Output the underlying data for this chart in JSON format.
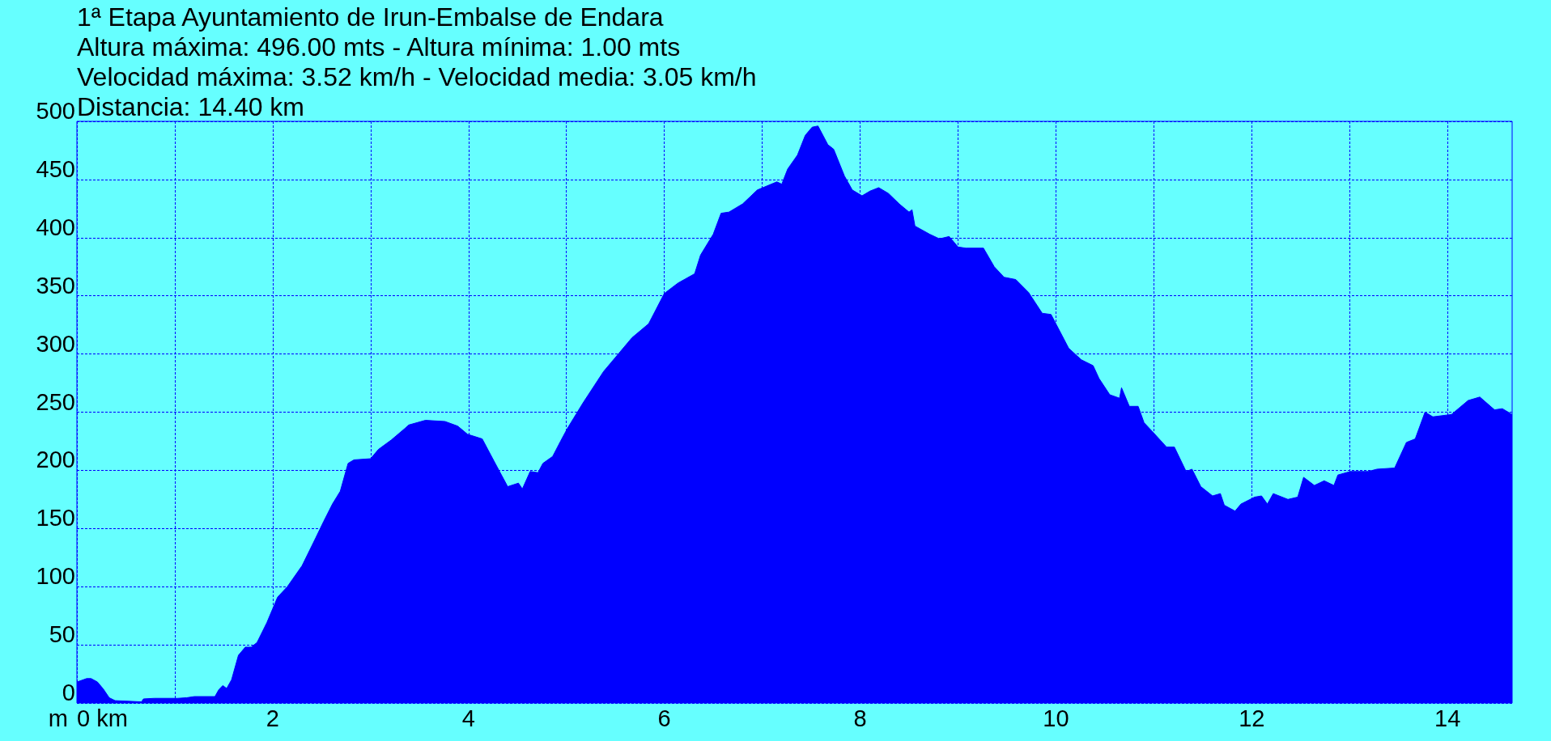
{
  "chart_data": {
    "type": "area",
    "title": "1ª Etapa Ayuntamiento de Irun-Embalse de Endara",
    "subtitle": "Altura máxima: 496.00 mts - Altura mínima: 1.00 mts\nVelocidad máxima: 3.52 km/h - Velocidad media: 3.05 km/h\nDistancia: 14.40 km",
    "ylabel": "m",
    "color": "#0000ff",
    "x": [
      0,
      0.1,
      0.145,
      0.21,
      0.27,
      0.33,
      0.39,
      0.66,
      0.68,
      0.79,
      1.03,
      1.12,
      1.2,
      1.41,
      1.45,
      1.49,
      1.53,
      1.58,
      1.65,
      1.72,
      1.78,
      1.84,
      1.94,
      2.05,
      2.15,
      2.3,
      2.44,
      2.52,
      2.61,
      2.69,
      2.77,
      2.83,
      3.0,
      3.08,
      3.21,
      3.35,
      3.39,
      3.56,
      3.76,
      3.89,
      3.99,
      4.14,
      4.26,
      4.4,
      4.51,
      4.55,
      4.63,
      4.71,
      4.76,
      4.86,
      4.94,
      5.01,
      5.17,
      5.38,
      5.5,
      5.67,
      5.84,
      6.0,
      6.14,
      6.31,
      6.37,
      6.5,
      6.58,
      6.66,
      6.8,
      6.95,
      7.15,
      7.2,
      7.26,
      7.36,
      7.44,
      7.51,
      7.57,
      7.67,
      7.73,
      7.84,
      7.92,
      8.02,
      8.1,
      8.19,
      8.29,
      8.4,
      8.5,
      8.53,
      8.56,
      8.71,
      8.81,
      8.91,
      9.0,
      9.08,
      9.26,
      9.37,
      9.47,
      9.59,
      9.72,
      9.86,
      9.95,
      10.13,
      10.26,
      10.38,
      10.44,
      10.55,
      10.65,
      10.67,
      10.75,
      10.84,
      10.9,
      11.0,
      11.13,
      11.21,
      11.33,
      11.39,
      11.48,
      11.6,
      11.68,
      11.72,
      11.83,
      11.89,
      12.03,
      12.1,
      12.16,
      12.22,
      12.37,
      12.47,
      12.53,
      12.64,
      12.74,
      12.84,
      12.88,
      13.01,
      13.19,
      13.28,
      13.46,
      13.58,
      13.67,
      13.77,
      13.85,
      14.04,
      14.21,
      14.33,
      14.48,
      14.56,
      14.66
    ],
    "values": [
      18,
      21,
      21,
      18,
      12,
      4.5,
      2,
      1,
      3.5,
      4,
      4,
      4.5,
      5.5,
      5.5,
      11.5,
      15,
      12.5,
      20,
      41,
      48,
      48,
      52,
      69,
      91,
      100,
      118,
      142,
      156,
      171,
      182,
      206,
      209,
      210,
      218,
      226,
      236,
      239,
      243,
      242,
      238,
      231,
      227,
      208,
      186,
      189,
      184,
      199,
      198,
      206,
      212,
      225,
      236,
      258,
      285,
      297,
      314,
      326,
      352,
      361,
      369,
      385,
      403,
      421,
      422,
      429,
      441,
      448,
      446,
      459,
      471,
      488,
      495,
      496,
      480,
      476,
      453,
      441,
      436,
      440,
      443,
      438,
      429,
      422,
      424,
      410,
      403,
      399,
      401,
      392,
      391,
      391,
      375,
      366,
      364,
      353,
      335,
      334,
      305,
      295,
      290,
      279,
      265,
      262,
      271,
      255,
      255,
      241,
      232,
      220,
      220,
      199,
      201,
      186,
      178,
      180,
      170,
      165,
      171,
      177,
      178,
      171,
      180,
      175,
      177,
      194,
      187,
      191,
      187,
      196,
      199,
      199,
      201,
      202,
      224,
      227,
      250,
      246,
      248,
      260,
      263,
      252,
      253,
      248
    ],
    "xlim": [
      0,
      14.66
    ],
    "xticks": [
      {
        "value": 0,
        "label": "0 km"
      },
      {
        "value": 1,
        "label": null
      },
      2,
      {
        "value": 3,
        "label": null
      },
      4,
      {
        "value": 5,
        "label": null
      },
      6,
      {
        "value": 7,
        "label": null
      },
      8,
      {
        "value": 9,
        "label": null
      },
      10,
      {
        "value": 11,
        "label": null
      },
      12,
      {
        "value": 13,
        "label": null
      },
      14
    ],
    "ylim": [
      0,
      500
    ],
    "yticks": [
      0,
      50,
      100,
      150,
      200,
      250,
      300,
      350,
      400,
      450,
      500
    ],
    "grid": true
  }
}
